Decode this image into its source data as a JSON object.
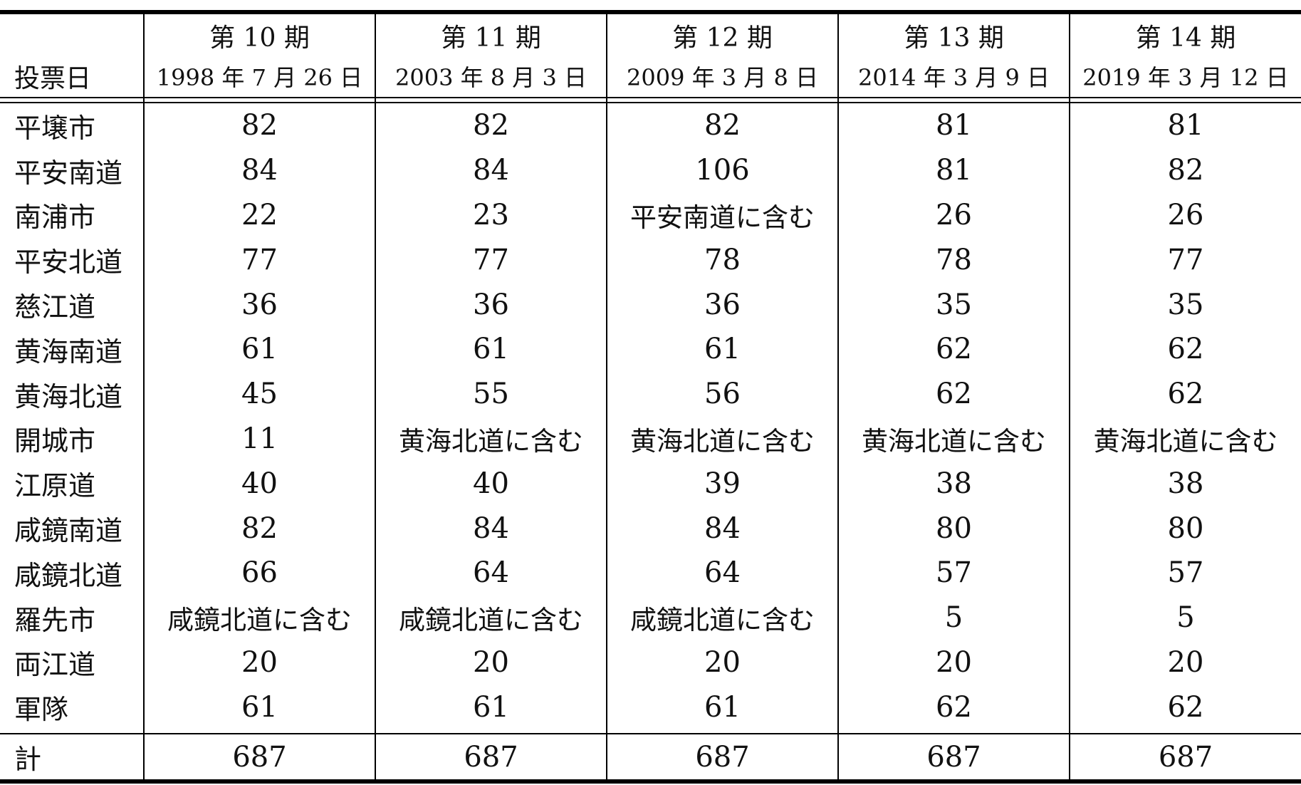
{
  "table": {
    "row_header_label": "投票日",
    "terms": [
      {
        "term": "第 10 期",
        "date": "1998 年 7 月 26 日"
      },
      {
        "term": "第 11 期",
        "date": "2003 年 8 月 3 日"
      },
      {
        "term": "第 12 期",
        "date": "2009 年 3 月 8 日"
      },
      {
        "term": "第 13 期",
        "date": "2014 年 3 月 9 日"
      },
      {
        "term": "第 14 期",
        "date": "2019 年 3 月 12 日"
      }
    ],
    "rows": [
      {
        "name": "平壌市",
        "values": [
          "82",
          "82",
          "82",
          "81",
          "81"
        ]
      },
      {
        "name": "平安南道",
        "values": [
          "84",
          "84",
          "106",
          "81",
          "82"
        ]
      },
      {
        "name": "南浦市",
        "values": [
          "22",
          "23",
          "平安南道に含む",
          "26",
          "26"
        ]
      },
      {
        "name": "平安北道",
        "values": [
          "77",
          "77",
          "78",
          "78",
          "77"
        ]
      },
      {
        "name": "慈江道",
        "values": [
          "36",
          "36",
          "36",
          "35",
          "35"
        ]
      },
      {
        "name": "黄海南道",
        "values": [
          "61",
          "61",
          "61",
          "62",
          "62"
        ]
      },
      {
        "name": "黄海北道",
        "values": [
          "45",
          "55",
          "56",
          "62",
          "62"
        ]
      },
      {
        "name": "開城市",
        "values": [
          "11",
          "黄海北道に含む",
          "黄海北道に含む",
          "黄海北道に含む",
          "黄海北道に含む"
        ]
      },
      {
        "name": "江原道",
        "values": [
          "40",
          "40",
          "39",
          "38",
          "38"
        ]
      },
      {
        "name": "咸鏡南道",
        "values": [
          "82",
          "84",
          "84",
          "80",
          "80"
        ]
      },
      {
        "name": "咸鏡北道",
        "values": [
          "66",
          "64",
          "64",
          "57",
          "57"
        ]
      },
      {
        "name": "羅先市",
        "values": [
          "咸鏡北道に含む",
          "咸鏡北道に含む",
          "咸鏡北道に含む",
          "5",
          "5"
        ]
      },
      {
        "name": "両江道",
        "values": [
          "20",
          "20",
          "20",
          "20",
          "20"
        ]
      },
      {
        "name": "軍隊",
        "values": [
          "61",
          "61",
          "61",
          "62",
          "62"
        ]
      }
    ],
    "total": {
      "name": "計",
      "values": [
        "687",
        "687",
        "687",
        "687",
        "687"
      ]
    }
  }
}
